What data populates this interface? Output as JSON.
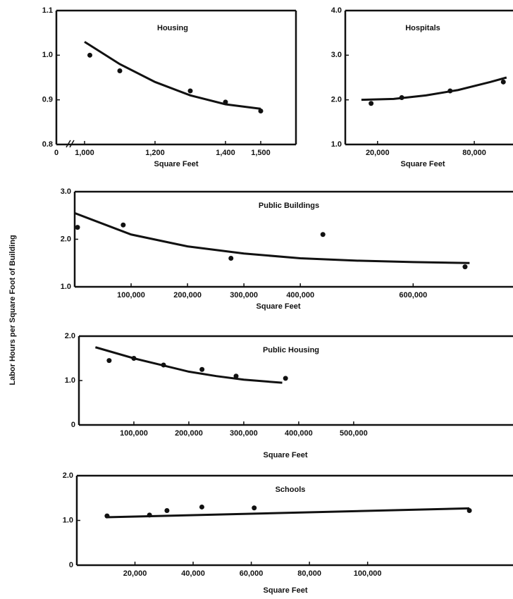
{
  "ylabel": "Labor Hours per Square Foot of Building",
  "chart_data": [
    {
      "type": "scatter",
      "title": "Housing",
      "xlabel": "Square Feet",
      "xbreak": true,
      "x": [
        1015,
        1100,
        1300,
        1400,
        1500
      ],
      "values": [
        1.0,
        0.965,
        0.92,
        0.895,
        0.875
      ],
      "fit_x": [
        1000,
        1100,
        1200,
        1300,
        1400,
        1500
      ],
      "fit_values": [
        1.03,
        0.98,
        0.94,
        0.91,
        0.89,
        0.88
      ],
      "color": "#111111",
      "xlim": [
        920,
        1600
      ],
      "ylim": [
        0.8,
        1.1
      ],
      "xticks": [
        0,
        {
          "value": 1000,
          "label": "1,000"
        },
        {
          "value": 1200,
          "label": "1,200"
        },
        {
          "value": 1400,
          "label": "1,400"
        },
        {
          "value": 1500,
          "label": "1,500"
        }
      ],
      "yticks": [
        0.8,
        0.9,
        {
          "value": 1,
          "label": "1.0"
        },
        1.1
      ]
    },
    {
      "type": "scatter",
      "title": "Hospitals",
      "xlabel": "Square Feet",
      "x": [
        16000,
        35000,
        65000,
        98000
      ],
      "values": [
        1.92,
        2.05,
        2.2,
        2.4
      ],
      "fit_x": [
        10000,
        30000,
        50000,
        70000,
        90000,
        100000
      ],
      "fit_values": [
        2.0,
        2.02,
        2.1,
        2.22,
        2.4,
        2.5
      ],
      "color": "#111111",
      "xlim": [
        0,
        104000
      ],
      "ylim": [
        1,
        4
      ],
      "xticks": [
        {
          "value": 20000,
          "label": "20,000"
        },
        {
          "value": 80000,
          "label": "80,000"
        }
      ],
      "yticks": [
        {
          "value": 1,
          "label": "1.0"
        },
        {
          "value": 2,
          "label": "2.0"
        },
        {
          "value": 3,
          "label": "3.0"
        },
        {
          "value": 4,
          "label": "4.0"
        }
      ]
    },
    {
      "type": "scatter",
      "title": "Public Buildings",
      "xlabel": "Square Feet",
      "x": [
        5000,
        86000,
        277000,
        440000,
        692000
      ],
      "values": [
        2.25,
        2.3,
        1.6,
        2.1,
        1.42
      ],
      "fit_x": [
        0,
        100000,
        200000,
        300000,
        400000,
        500000,
        600000,
        700000
      ],
      "fit_values": [
        2.55,
        2.1,
        1.85,
        1.7,
        1.6,
        1.55,
        1.52,
        1.5
      ],
      "color": "#111111",
      "xlim": [
        0,
        777000
      ],
      "ylim": [
        1,
        3
      ],
      "xticks": [
        {
          "value": 100000,
          "label": "100,000"
        },
        {
          "value": 200000,
          "label": "200,000"
        },
        {
          "value": 300000,
          "label": "300,000"
        },
        {
          "value": 400000,
          "label": "400,000"
        },
        {
          "value": 600000,
          "label": "600,000"
        }
      ],
      "yticks": [
        {
          "value": 1,
          "label": "1.0"
        },
        {
          "value": 2,
          "label": "2.0"
        },
        {
          "value": 3,
          "label": "3.0"
        }
      ]
    },
    {
      "type": "scatter",
      "title": "Public Housing",
      "xlabel": "Square Feet",
      "x": [
        55000,
        100000,
        154000,
        224000,
        286000,
        376000
      ],
      "values": [
        1.45,
        1.5,
        1.35,
        1.25,
        1.1,
        1.05
      ],
      "fit_x": [
        30000,
        100000,
        150000,
        200000,
        250000,
        300000,
        370000
      ],
      "fit_values": [
        1.75,
        1.5,
        1.35,
        1.2,
        1.1,
        1.02,
        0.95
      ],
      "color": "#111111",
      "xlim": [
        0,
        790000
      ],
      "ylim": [
        0,
        2
      ],
      "xticks": [
        {
          "value": 100000,
          "label": "100,000"
        },
        {
          "value": 200000,
          "label": "200,000"
        },
        {
          "value": 300000,
          "label": "300,000"
        },
        {
          "value": 400000,
          "label": "400,000"
        },
        {
          "value": 500000,
          "label": "500,000"
        }
      ],
      "yticks": [
        0,
        {
          "value": 1,
          "label": "1.0"
        },
        {
          "value": 2,
          "label": "2.0"
        }
      ]
    },
    {
      "type": "scatter",
      "title": "Schools",
      "xlabel": "Square Feet",
      "x": [
        10400,
        25000,
        31000,
        43000,
        61000,
        135000
      ],
      "values": [
        1.1,
        1.12,
        1.22,
        1.3,
        1.28,
        1.22
      ],
      "fit_x": [
        10000,
        135000
      ],
      "fit_values": [
        1.07,
        1.27
      ],
      "color": "#111111",
      "xlim": [
        0,
        150000
      ],
      "ylim": [
        0,
        2
      ],
      "xticks": [
        {
          "value": 20000,
          "label": "20,000"
        },
        {
          "value": 40000,
          "label": "40,000"
        },
        {
          "value": 60000,
          "label": "60,000"
        },
        {
          "value": 80000,
          "label": "80,000"
        },
        {
          "value": 100000,
          "label": "100,000"
        }
      ],
      "yticks": [
        0,
        {
          "value": 1,
          "label": "1.0"
        },
        {
          "value": 2,
          "label": "2.0"
        }
      ]
    }
  ]
}
